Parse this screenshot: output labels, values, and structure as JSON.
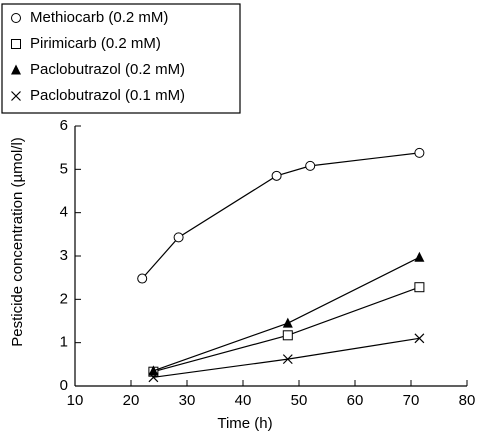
{
  "chart_data": {
    "type": "line",
    "xlabel": "Time (h)",
    "ylabel": "Pesticide concentration (µmol/l)",
    "xlim": [
      10,
      80
    ],
    "xticks": [
      10,
      20,
      30,
      40,
      50,
      60,
      70,
      80
    ],
    "ylim": [
      0,
      6
    ],
    "yticks": [
      0,
      1,
      2,
      3,
      4,
      5,
      6
    ],
    "legend": "top-left",
    "series": [
      {
        "name": "Methiocarb (0.2 mM)",
        "color": "#000000",
        "marker": "circle",
        "x": [
          22,
          28.5,
          46,
          52,
          71.5
        ],
        "values": [
          2.48,
          3.43,
          4.85,
          5.08,
          5.38
        ]
      },
      {
        "name": "Pirimicarb (0.2 mM)",
        "color": "#000000",
        "marker": "square",
        "x": [
          24,
          48,
          71.5
        ],
        "values": [
          0.33,
          1.17,
          2.28
        ]
      },
      {
        "name": "Paclobutrazol (0.2 mM)",
        "color": "#000000",
        "marker": "triangle",
        "x": [
          24,
          48,
          71.5
        ],
        "values": [
          0.35,
          1.45,
          2.97
        ]
      },
      {
        "name": "Paclobutrazol (0.1 mM)",
        "color": "#000000",
        "marker": "x",
        "x": [
          24,
          48,
          71.5
        ],
        "values": [
          0.2,
          0.62,
          1.1
        ]
      }
    ]
  }
}
